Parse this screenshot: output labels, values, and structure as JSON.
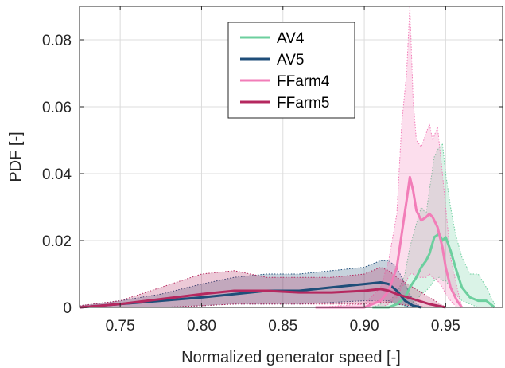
{
  "chart_data": {
    "type": "line",
    "xlabel": "Normalized generator speed [-]",
    "ylabel": "PDF [-]",
    "xlim": [
      0.725,
      0.985
    ],
    "ylim": [
      0,
      0.09
    ],
    "xticks": [
      0.75,
      0.8,
      0.85,
      0.9,
      0.95
    ],
    "xtick_labels": [
      "0.75",
      "0.80",
      "0.85",
      "0.90",
      "0.95"
    ],
    "yticks": [
      0,
      0.02,
      0.04,
      0.06,
      0.08
    ],
    "ytick_labels": [
      "0",
      "0.02",
      "0.04",
      "0.06",
      "0.08"
    ],
    "grid": true,
    "legend_position": "top-center",
    "series": [
      {
        "name": "AV4",
        "color": "#6ccf9e",
        "x": [
          0.905,
          0.915,
          0.92,
          0.925,
          0.928,
          0.932,
          0.935,
          0.938,
          0.94,
          0.943,
          0.946,
          0.948,
          0.95,
          0.953,
          0.956,
          0.96,
          0.965,
          0.97,
          0.975,
          0.98
        ],
        "mean": [
          0,
          0.0,
          0.001,
          0.003,
          0.006,
          0.009,
          0.012,
          0.014,
          0.016,
          0.021,
          0.022,
          0.02,
          0.021,
          0.017,
          0.012,
          0.006,
          0.003,
          0.002,
          0.002,
          0.0
        ],
        "upper": [
          0,
          0.002,
          0.004,
          0.01,
          0.018,
          0.025,
          0.03,
          0.028,
          0.035,
          0.045,
          0.048,
          0.049,
          0.04,
          0.03,
          0.022,
          0.015,
          0.01,
          0.01,
          0.006,
          0.001
        ],
        "lower": [
          0,
          0.0,
          0.0,
          0.0,
          0.001,
          0.002,
          0.004,
          0.005,
          0.006,
          0.008,
          0.009,
          0.008,
          0.008,
          0.006,
          0.004,
          0.002,
          0.001,
          0.0,
          0.0,
          0.0
        ]
      },
      {
        "name": "AV5",
        "color": "#1f4e79",
        "x": [
          0.725,
          0.75,
          0.775,
          0.8,
          0.82,
          0.84,
          0.86,
          0.88,
          0.9,
          0.91,
          0.915,
          0.92,
          0.925,
          0.93,
          0.935
        ],
        "mean": [
          0.0,
          0.001,
          0.002,
          0.003,
          0.004,
          0.005,
          0.005,
          0.006,
          0.007,
          0.0075,
          0.007,
          0.005,
          0.002,
          0.0005,
          0.0
        ],
        "upper": [
          0.0005,
          0.002,
          0.004,
          0.007,
          0.009,
          0.01,
          0.01,
          0.011,
          0.012,
          0.014,
          0.014,
          0.012,
          0.007,
          0.002,
          0.0
        ],
        "lower": [
          0.0,
          0.0,
          0.0,
          0.0005,
          0.001,
          0.001,
          0.001,
          0.0015,
          0.002,
          0.002,
          0.002,
          0.001,
          0.0005,
          0.0,
          0.0
        ]
      },
      {
        "name": "FFarm4",
        "color": "#f27db8",
        "x": [
          0.87,
          0.9,
          0.91,
          0.915,
          0.92,
          0.923,
          0.926,
          0.928,
          0.93,
          0.932,
          0.935,
          0.938,
          0.94,
          0.942,
          0.945,
          0.948,
          0.95,
          0.953,
          0.957,
          0.96
        ],
        "mean": [
          0,
          0.0,
          0.002,
          0.005,
          0.012,
          0.022,
          0.032,
          0.039,
          0.035,
          0.029,
          0.026,
          0.027,
          0.028,
          0.027,
          0.024,
          0.018,
          0.012,
          0.006,
          0.002,
          0.0
        ],
        "upper": [
          0,
          0.001,
          0.006,
          0.014,
          0.028,
          0.055,
          0.07,
          0.09,
          0.062,
          0.05,
          0.048,
          0.052,
          0.055,
          0.05,
          0.054,
          0.04,
          0.03,
          0.015,
          0.006,
          0.0
        ],
        "lower": [
          0,
          0.0,
          0.0,
          0.001,
          0.003,
          0.006,
          0.008,
          0.01,
          0.01,
          0.009,
          0.009,
          0.009,
          0.01,
          0.009,
          0.008,
          0.006,
          0.004,
          0.002,
          0.0,
          0.0
        ]
      },
      {
        "name": "FFarm5",
        "color": "#b5285f",
        "x": [
          0.725,
          0.75,
          0.775,
          0.8,
          0.82,
          0.84,
          0.86,
          0.88,
          0.9,
          0.91,
          0.915,
          0.92,
          0.93,
          0.94,
          0.95
        ],
        "mean": [
          0.0,
          0.001,
          0.0025,
          0.004,
          0.005,
          0.005,
          0.0045,
          0.0045,
          0.005,
          0.0055,
          0.005,
          0.004,
          0.0025,
          0.001,
          0.0
        ],
        "upper": [
          0.0005,
          0.002,
          0.006,
          0.01,
          0.011,
          0.009,
          0.009,
          0.009,
          0.01,
          0.012,
          0.011,
          0.009,
          0.006,
          0.003,
          0.0
        ],
        "lower": [
          0.0,
          0.0,
          0.0,
          0.0005,
          0.001,
          0.001,
          0.001,
          0.001,
          0.001,
          0.0015,
          0.0015,
          0.001,
          0.0005,
          0.0,
          0.0
        ]
      }
    ]
  }
}
